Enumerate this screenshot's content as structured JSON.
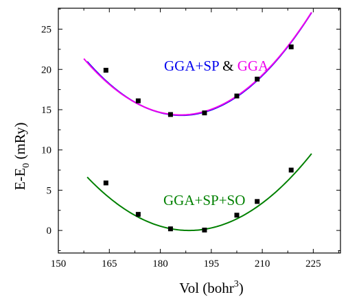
{
  "chart_data": {
    "type": "line",
    "title": "",
    "xlabel": {
      "base": "Vol (bohr",
      "sup": "3",
      "tail": ")"
    },
    "ylabel": {
      "base": "E-E",
      "sub": "0",
      "tail": " (mRy)"
    },
    "xlim": [
      150,
      233
    ],
    "ylim": [
      -2.8,
      27.6
    ],
    "xticks": [
      150,
      165,
      180,
      195,
      210,
      225
    ],
    "yticks": [
      0,
      5,
      10,
      15,
      20,
      25
    ],
    "colors": {
      "gga_sp": "#0000ee",
      "gga": "#ee00ee",
      "gga_sp_so": "#008000",
      "points": "#000000",
      "amp": "#000000"
    },
    "annotations": {
      "upper_label": {
        "part1": "GGA+SP",
        "amp": "&",
        "part2": "GGA"
      },
      "lower_label": "GGA+SP+SO"
    },
    "series": [
      {
        "key": "gga_sp",
        "kind": "fit-curve",
        "color": "#0000ee",
        "x_range": [
          158.5,
          224.5
        ],
        "fit": {
          "a": 0.0087,
          "x0": 186.2,
          "y0": 14.3
        }
      },
      {
        "key": "gga",
        "kind": "fit-curve",
        "color": "#ee00ee",
        "x_range": [
          157.5,
          224.5
        ],
        "fit": {
          "a": 0.0086,
          "x0": 186.0,
          "y0": 14.35
        }
      },
      {
        "key": "gga_sp_points",
        "kind": "points",
        "x": [
          164,
          173.5,
          183,
          193,
          202.5,
          208.5,
          218.5
        ],
        "y": [
          19.9,
          16.1,
          14.4,
          14.6,
          16.7,
          18.8,
          22.8
        ]
      },
      {
        "key": "gga_sp_so",
        "kind": "fit-curve",
        "color": "#008000",
        "x_range": [
          158.5,
          224.5
        ],
        "fit": {
          "a": 0.00736,
          "x0": 188.5,
          "y0": 0.0
        }
      },
      {
        "key": "gga_sp_so_points",
        "kind": "points",
        "x": [
          164,
          173.5,
          183,
          193,
          202.5,
          208.5,
          218.5
        ],
        "y": [
          5.9,
          2.0,
          0.2,
          0.05,
          1.9,
          3.6,
          7.5
        ]
      }
    ]
  }
}
